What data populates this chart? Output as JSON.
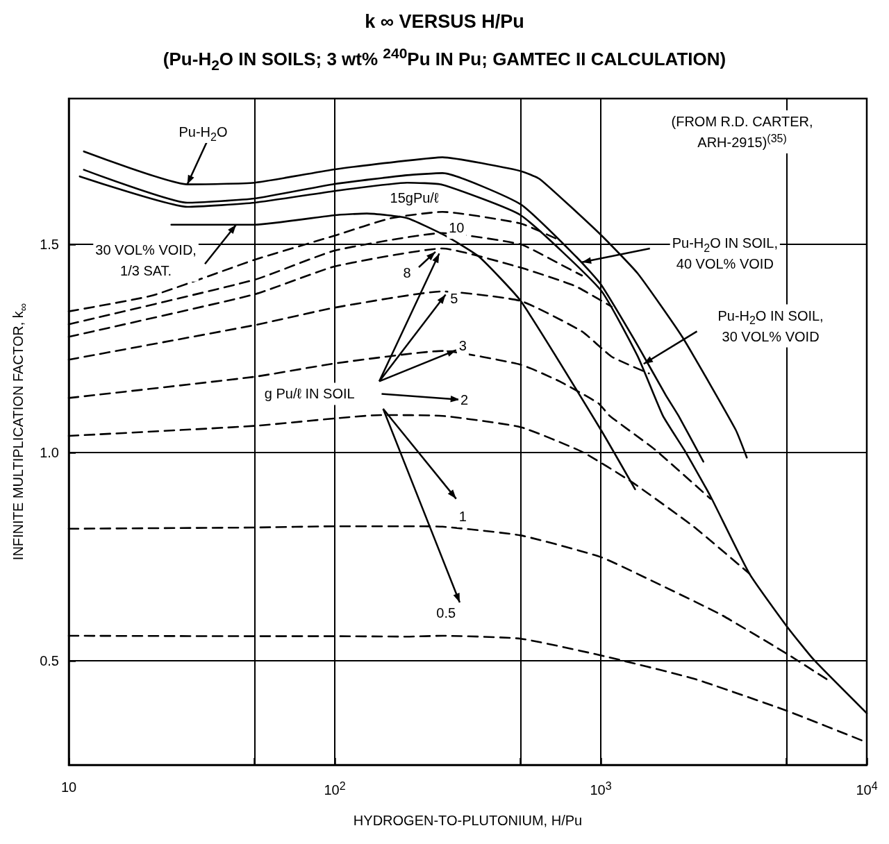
{
  "chart_data": {
    "type": "line",
    "title": "k ∞ VERSUS H/Pu",
    "subtitle": "(Pu-H$_{2}$O IN SOILS; 3 wt% $^{240}$Pu IN Pu; GAMTEC II CALCULATION)",
    "xlabel": "HYDROGEN-TO-PLUTONIUM, H/Pu",
    "ylabel": "INFINITE MULTIPLICATION FACTOR, k$_{∞}$",
    "log": "x",
    "grid": true,
    "marker": "none",
    "xlim": [
      10,
      10000
    ],
    "xticks": [
      10,
      {
        "value": 50,
        "label": null
      },
      {
        "value": 100,
        "label": "10$^{2}$"
      },
      {
        "value": 500,
        "label": null
      },
      {
        "value": 1000,
        "label": "10$^{3}$"
      },
      {
        "value": 5000,
        "label": null
      },
      {
        "value": 10000,
        "label": "10$^{4}$"
      }
    ],
    "ylim": [
      0.25,
      1.85
    ],
    "yticks": [
      0.5,
      {
        "value": 1,
        "label": "1.0"
      },
      1.5
    ],
    "series": [
      {
        "color": "#000000",
        "line_style": "solid",
        "x": [
          11.4,
          27.9,
          50,
          100,
          187,
          254,
          500,
          592,
          1000,
          1377,
          2028,
          3213,
          3540
        ],
        "values": [
          1.723,
          1.644,
          1.648,
          1.68,
          1.701,
          1.709,
          1.676,
          1.656,
          1.523,
          1.43,
          1.277,
          1.055,
          0.988
        ]
      },
      {
        "color": "#000000",
        "line_style": "solid",
        "x": [
          11.4,
          27.9,
          50,
          100,
          187,
          254,
          500,
          809,
          1000,
          1377,
          1754,
          1961,
          2431
        ],
        "values": [
          1.679,
          1.6,
          1.61,
          1.645,
          1.666,
          1.671,
          1.596,
          1.47,
          1.404,
          1.257,
          1.138,
          1.088,
          0.978
        ]
      },
      {
        "color": "#000000",
        "line_style": "solid",
        "x": [
          11,
          27.9,
          50,
          100,
          187,
          254,
          500,
          1000,
          1377,
          1713,
          2080,
          2585,
          3622,
          5000,
          6310,
          10000
        ],
        "values": [
          1.663,
          1.59,
          1.6,
          1.628,
          1.648,
          1.643,
          1.57,
          1.39,
          1.231,
          1.088,
          1.002,
          0.895,
          0.709,
          0.583,
          0.503,
          0.374
        ]
      },
      {
        "color": "#000000",
        "line_style": "solid",
        "x": [
          24.3,
          50,
          100,
          132,
          187,
          260,
          349,
          500,
          1000,
          1346
        ],
        "values": [
          1.547,
          1.547,
          1.57,
          1.574,
          1.563,
          1.521,
          1.47,
          1.364,
          1.055,
          0.912
        ]
      },
      {
        "color": "#000000",
        "line_style": "dashed",
        "x": [
          10,
          20.6,
          50,
          100,
          163,
          254,
          500,
          700
        ],
        "values": [
          1.339,
          1.377,
          1.463,
          1.521,
          1.563,
          1.578,
          1.55,
          1.51
        ]
      },
      {
        "color": "#000000",
        "line_style": "dashed",
        "x": [
          10,
          50,
          100,
          254,
          500,
          700,
          850
        ],
        "values": [
          1.308,
          1.415,
          1.485,
          1.527,
          1.5,
          1.453,
          1.425
        ]
      },
      {
        "color": "#000000",
        "line_style": "dashed",
        "x": [
          10,
          50,
          100,
          254,
          500,
          800,
          1100
        ],
        "values": [
          1.278,
          1.38,
          1.447,
          1.49,
          1.444,
          1.4,
          1.35
        ]
      },
      {
        "color": "#000000",
        "line_style": "dashed",
        "x": [
          10,
          50,
          100,
          254,
          500,
          849,
          1100,
          1517
        ],
        "values": [
          1.223,
          1.306,
          1.348,
          1.387,
          1.364,
          1.291,
          1.23,
          1.19
        ]
      },
      {
        "color": "#000000",
        "line_style": "dashed",
        "x": [
          10,
          50,
          100,
          254,
          500,
          700,
          981,
          1081,
          1592,
          2585
        ],
        "values": [
          1.131,
          1.182,
          1.214,
          1.244,
          1.211,
          1.171,
          1.118,
          1.088,
          1.008,
          0.889
        ]
      },
      {
        "color": "#000000",
        "line_style": "dashed",
        "x": [
          10,
          50,
          149,
          254,
          500,
          849,
          1310,
          2235,
          3622
        ],
        "values": [
          1.04,
          1.064,
          1.09,
          1.088,
          1.061,
          1.002,
          0.929,
          0.822,
          0.709
        ]
      },
      {
        "color": "#000000",
        "line_style": "dashed",
        "x": [
          10,
          50,
          100,
          187,
          254,
          500,
          1000,
          1754,
          2844,
          5000,
          7300
        ],
        "values": [
          0.817,
          0.82,
          0.823,
          0.823,
          0.822,
          0.801,
          0.749,
          0.676,
          0.61,
          0.517,
          0.45
        ]
      },
      {
        "color": "#000000",
        "line_style": "dashed",
        "x": [
          10,
          50,
          100,
          187,
          254,
          500,
          1000,
          2235,
          5000,
          10000
        ],
        "values": [
          0.56,
          0.559,
          0.559,
          0.558,
          0.56,
          0.553,
          0.513,
          0.457,
          0.38,
          0.304
        ]
      }
    ],
    "annotations": [
      {
        "text": "Pu-H$_{2}$O",
        "x": 27.9,
        "y": 1.644
      },
      {
        "text": "30 VOL% VOID,\n1/3 SAT.",
        "x": 42.6,
        "y": 1.547
      },
      "15gPu/ℓ",
      {
        "text": "10",
        "x": 287,
        "y": 1.54
      },
      {
        "text": "8",
        "x": 187,
        "y": 1.432
      },
      {
        "text": "5",
        "x": 281,
        "y": 1.37
      },
      {
        "text": "3",
        "x": 303,
        "y": 1.257
      },
      {
        "text": "2",
        "x": 307,
        "y": 1.126
      },
      {
        "text": "1",
        "x": 303,
        "y": 0.847
      },
      {
        "text": "0.5",
        "x": 262,
        "y": 0.615
      },
      "g Pu/ℓ IN SOIL",
      "Pu-H$_{2}$O IN SOIL,\n40 VOL% VOID",
      "Pu-H$_{2}$O IN SOIL,\n30 VOL% VOID",
      "(FROM R.D. CARTER,\nARH-2915)$^{(35)}$"
    ]
  }
}
